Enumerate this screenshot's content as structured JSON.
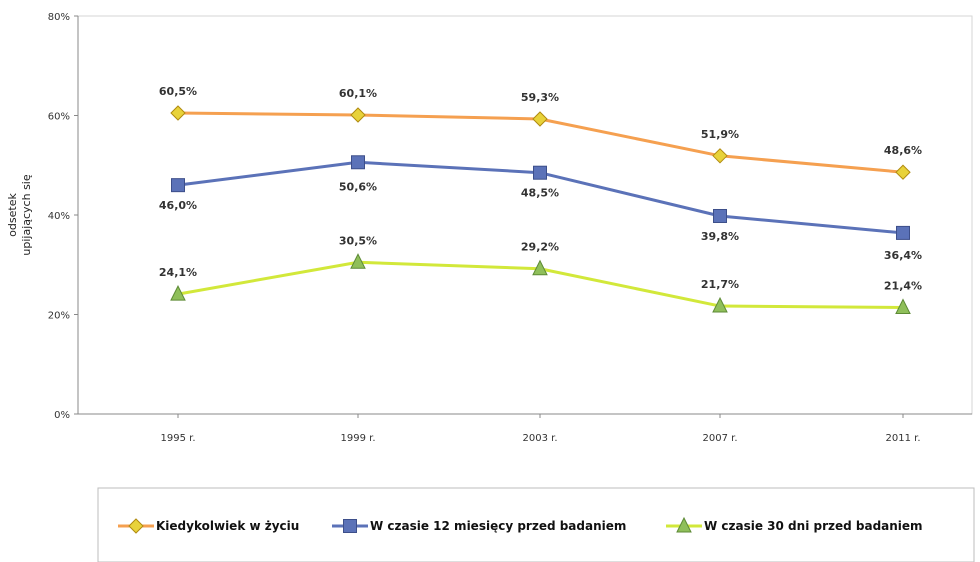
{
  "chart_data": {
    "type": "line",
    "ylabel_lines": [
      "odsetek",
      "upijających się"
    ],
    "categories": [
      "1995 r.",
      "1999 r.",
      "2003 r.",
      "2007 r.",
      "2011 r."
    ],
    "ylim": [
      0,
      80
    ],
    "y_ticks": [
      "0%",
      "20%",
      "40%",
      "60%",
      "80%"
    ],
    "y_tick_values": [
      0,
      20,
      40,
      60,
      80
    ],
    "grid": false,
    "legend_position": "bottom",
    "series": [
      {
        "name": "Kiedykolwiek w życiu",
        "values": [
          60.5,
          60.1,
          59.3,
          51.9,
          48.6
        ],
        "labels": [
          "60,5%",
          "60,1%",
          "59,3%",
          "51,9%",
          "48,6%"
        ],
        "color": "#f5a050",
        "marker": "diamond"
      },
      {
        "name": "W czasie 12 miesięcy przed badaniem",
        "values": [
          46.0,
          50.6,
          48.5,
          39.8,
          36.4
        ],
        "labels": [
          "46,0%",
          "50,6%",
          "48,5%",
          "39,8%",
          "36,4%"
        ],
        "color": "#5b72b8",
        "marker": "square"
      },
      {
        "name": "W czasie 30 dni przed badaniem",
        "values": [
          24.1,
          30.5,
          29.2,
          21.7,
          21.4
        ],
        "labels": [
          "24,1%",
          "30,5%",
          "29,2%",
          "21,7%",
          "21,4%"
        ],
        "color": "#d2e83a",
        "marker": "triangle"
      }
    ]
  }
}
